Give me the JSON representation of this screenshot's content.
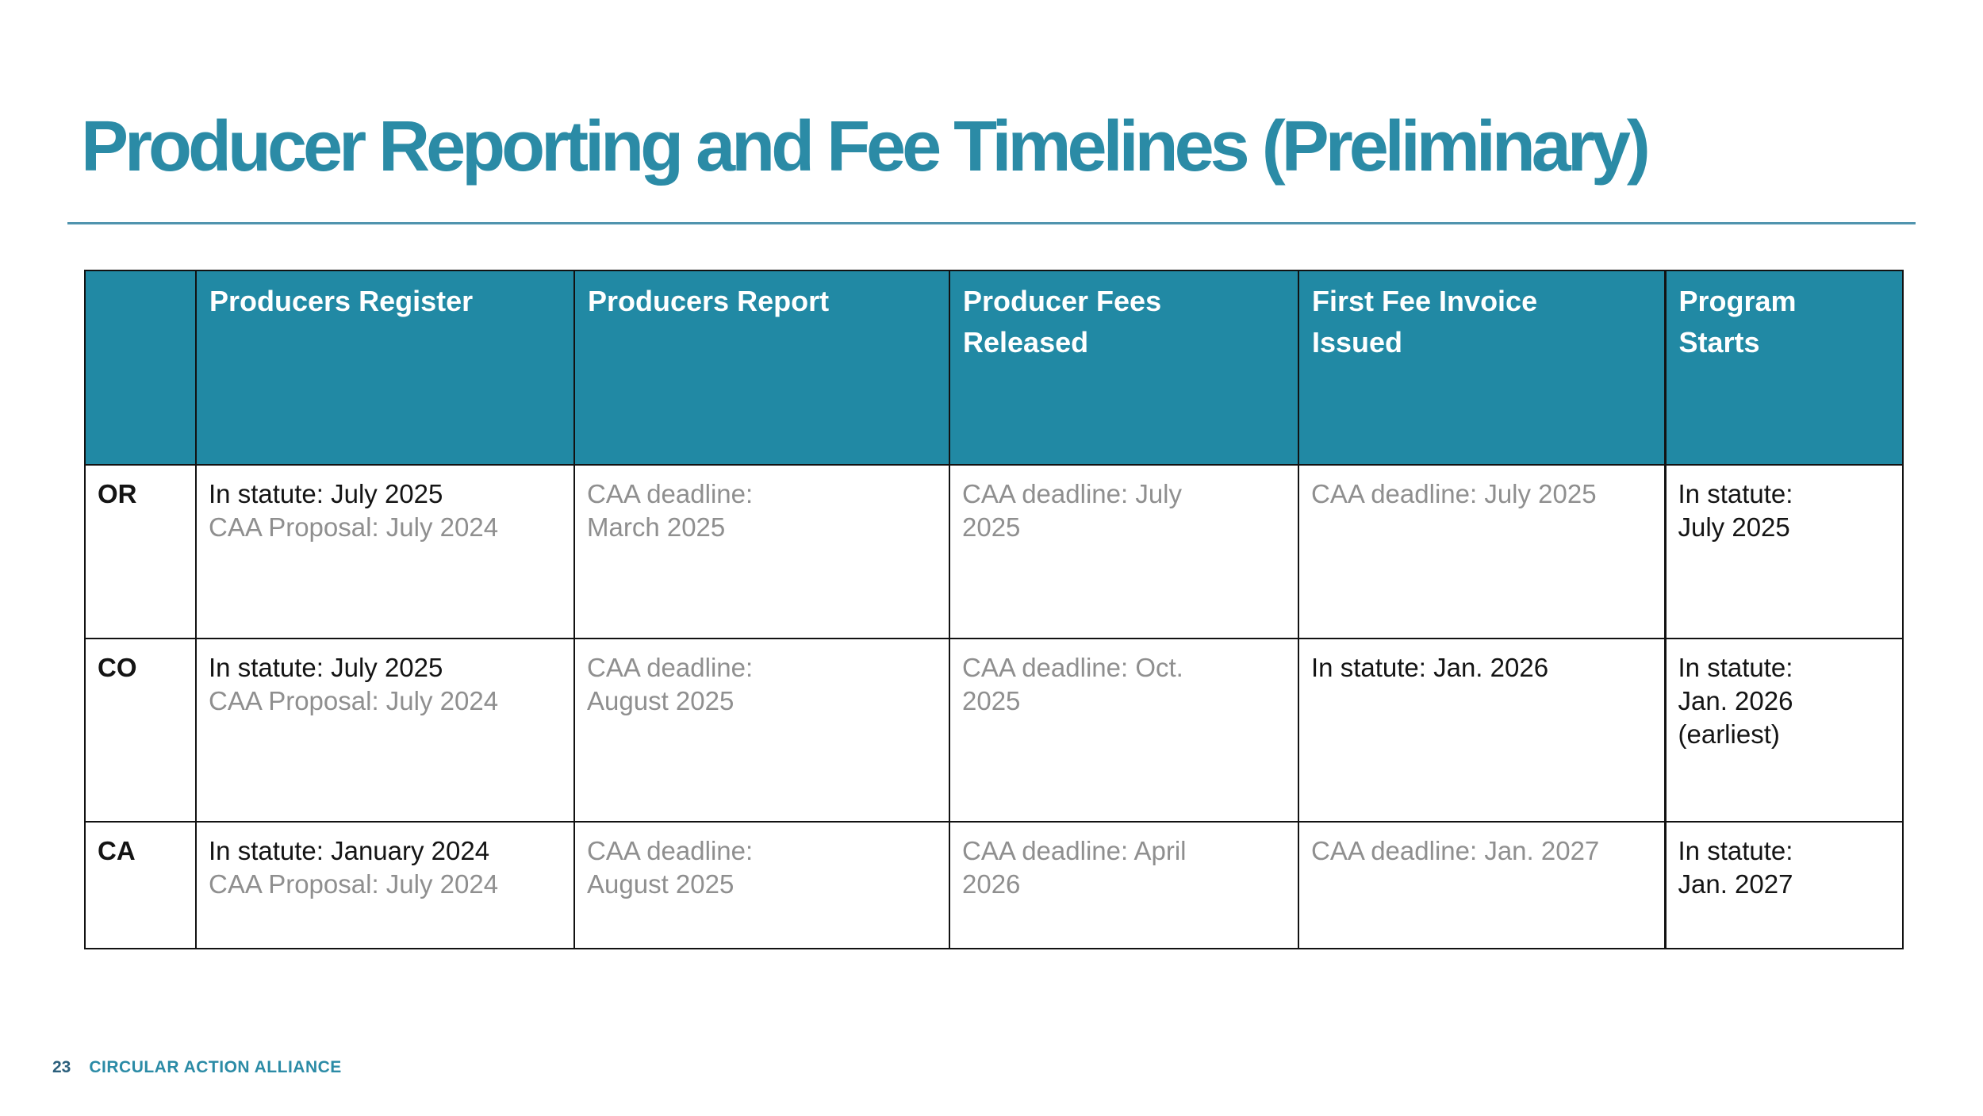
{
  "slide": {
    "title": "Producer Reporting and Fee Timelines (Preliminary)",
    "footer": {
      "page_number": "23",
      "brand": "CIRCULAR ACTION ALLIANCE"
    }
  },
  "colors": {
    "title_teal": "#2B8BA6",
    "header_bg": "#2189A4",
    "header_text": "#FFFFFF",
    "body_text": "#141414",
    "muted_text": "#8F8F8F",
    "rule": "#5094AE",
    "border": "#121212",
    "page_number": "#2B5F7C"
  },
  "table": {
    "header": [
      [],
      [
        "Producers Register"
      ],
      [
        "Producers Report"
      ],
      [
        "Producer Fees",
        "Released"
      ],
      [
        "First Fee Invoice",
        "Issued"
      ],
      [
        "Program",
        "Starts"
      ]
    ],
    "rows": [
      {
        "state": "OR",
        "cells": [
          [
            {
              "text": "In statute: July 2025",
              "muted": false
            },
            {
              "text": "CAA Proposal: July 2024",
              "muted": true
            }
          ],
          [
            {
              "text": "CAA deadline:",
              "muted": true
            },
            {
              "text": "March 2025",
              "muted": true
            }
          ],
          [
            {
              "text": "CAA deadline: July",
              "muted": true
            },
            {
              "text": "2025",
              "muted": true
            }
          ],
          [
            {
              "text": "CAA deadline: July 2025",
              "muted": true
            }
          ],
          [
            {
              "text": "In statute:",
              "muted": false
            },
            {
              "text": "July 2025",
              "muted": false
            }
          ]
        ]
      },
      {
        "state": "CO",
        "cells": [
          [
            {
              "text": "In statute: July 2025",
              "muted": false
            },
            {
              "text": "CAA Proposal: July 2024",
              "muted": true
            }
          ],
          [
            {
              "text": "CAA deadline:",
              "muted": true
            },
            {
              "text": "August 2025",
              "muted": true
            }
          ],
          [
            {
              "text": "CAA deadline: Oct.",
              "muted": true
            },
            {
              "text": "2025",
              "muted": true
            }
          ],
          [
            {
              "text": "In statute: Jan. 2026",
              "muted": false
            }
          ],
          [
            {
              "text": "In statute:",
              "muted": false
            },
            {
              "text": "Jan. 2026",
              "muted": false
            },
            {
              "text": "(earliest)",
              "muted": false
            }
          ]
        ]
      },
      {
        "state": "CA",
        "cells": [
          [
            {
              "text": "In statute: January 2024",
              "muted": false
            },
            {
              "text": "CAA Proposal: July 2024",
              "muted": true
            }
          ],
          [
            {
              "text": "CAA deadline:",
              "muted": true
            },
            {
              "text": "August 2025",
              "muted": true
            }
          ],
          [
            {
              "text": "CAA deadline: April",
              "muted": true
            },
            {
              "text": "2026",
              "muted": true
            }
          ],
          [
            {
              "text": "CAA deadline: Jan. 2027",
              "muted": true
            }
          ],
          [
            {
              "text": "In statute:",
              "muted": false
            },
            {
              "text": "Jan. 2027",
              "muted": false
            }
          ]
        ]
      }
    ]
  }
}
